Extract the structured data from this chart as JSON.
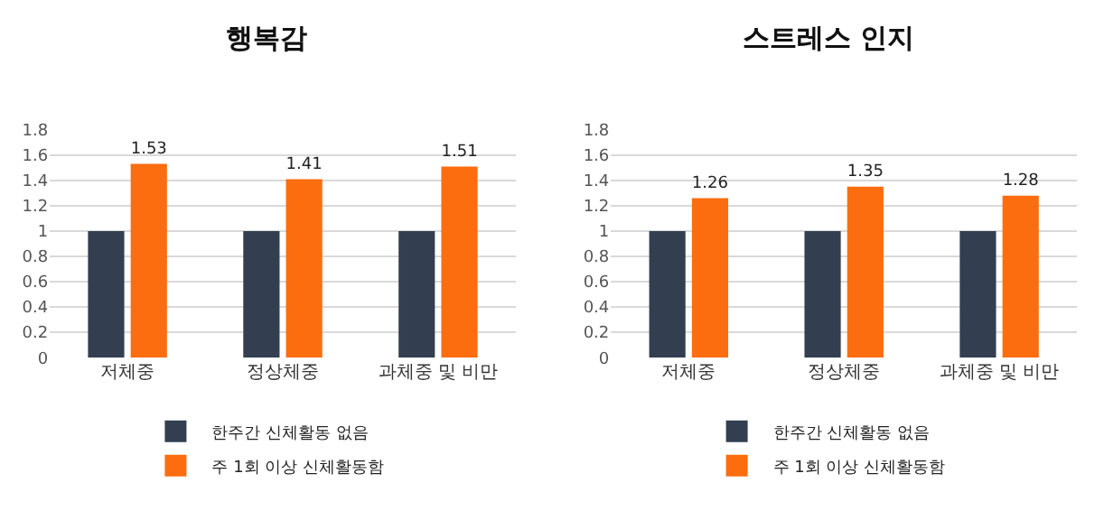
{
  "chart_data": [
    {
      "type": "bar",
      "title": "행복감",
      "categories": [
        "저체중",
        "정상체중",
        "과체중 및 비만"
      ],
      "series": [
        {
          "name": "한주간 신체활동 없음",
          "color": "#333f50",
          "values": [
            1,
            1,
            1
          ]
        },
        {
          "name": "주 1회 이상 신체활동함",
          "color": "#fc6d0f",
          "values": [
            1.53,
            1.41,
            1.51
          ],
          "value_labels": [
            "1.53",
            "1.41",
            "1.51"
          ]
        }
      ],
      "ylim": [
        0,
        1.8
      ],
      "yticks": [
        0,
        0.2,
        0.4,
        0.6,
        0.8,
        1,
        1.2,
        1.4,
        1.6,
        1.8
      ],
      "grid": "y",
      "legend": "bottom"
    },
    {
      "type": "bar",
      "title": "스트레스 인지",
      "categories": [
        "저체중",
        "정상체중",
        "과체중 및 비만"
      ],
      "series": [
        {
          "name": "한주간 신체활동 없음",
          "color": "#333f50",
          "values": [
            1,
            1,
            1
          ]
        },
        {
          "name": "주 1회 이상 신체활동함",
          "color": "#fc6d0f",
          "values": [
            1.26,
            1.35,
            1.28
          ],
          "value_labels": [
            "1.26",
            "1.35",
            "1.28"
          ]
        }
      ],
      "ylim": [
        0,
        1.8
      ],
      "yticks": [
        0,
        0.2,
        0.4,
        0.6,
        0.8,
        1,
        1.2,
        1.4,
        1.6,
        1.8
      ],
      "grid": "y",
      "legend": "bottom"
    }
  ]
}
